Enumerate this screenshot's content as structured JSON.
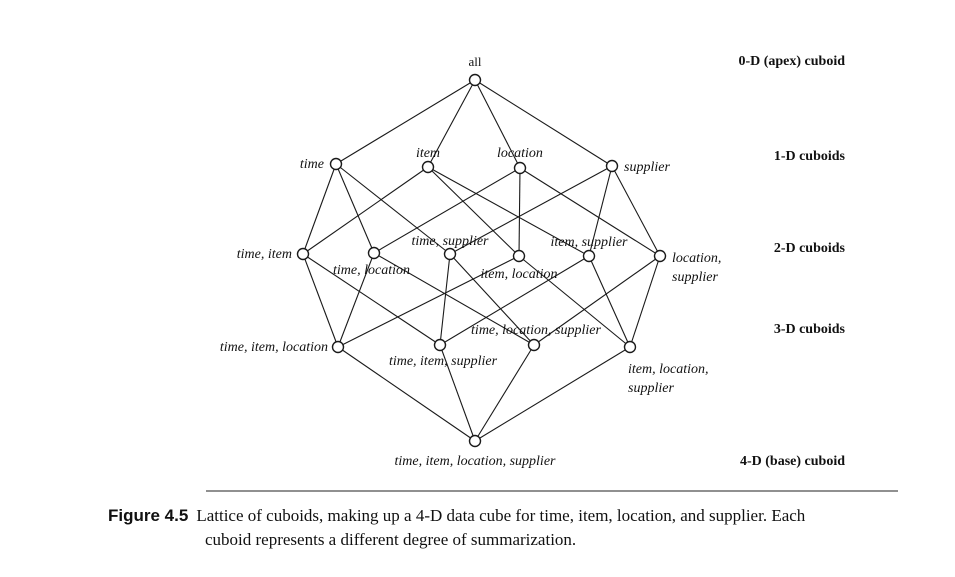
{
  "diagram": {
    "nodes": [
      {
        "id": "n0",
        "text": "all"
      },
      {
        "id": "n1",
        "text": "time"
      },
      {
        "id": "n2",
        "text": "item"
      },
      {
        "id": "n3",
        "text": "location"
      },
      {
        "id": "n4",
        "text": "supplier"
      },
      {
        "id": "n5",
        "text": "time, item"
      },
      {
        "id": "n6",
        "text": "time, location"
      },
      {
        "id": "n7",
        "text": "time, supplier"
      },
      {
        "id": "n8",
        "text": "item, location"
      },
      {
        "id": "n9",
        "text": "item, supplier"
      },
      {
        "id": "n10",
        "text": "location, supplier"
      },
      {
        "id": "n11",
        "text": "time, item, location"
      },
      {
        "id": "n12",
        "text": "time, item, supplier"
      },
      {
        "id": "n13",
        "text": "time, location, supplier"
      },
      {
        "id": "n14",
        "text": "item, location, supplier"
      },
      {
        "id": "n15",
        "text": "time, item, location, supplier"
      }
    ],
    "edges": [
      [
        "n0",
        "n1"
      ],
      [
        "n0",
        "n2"
      ],
      [
        "n0",
        "n3"
      ],
      [
        "n0",
        "n4"
      ],
      [
        "n1",
        "n5"
      ],
      [
        "n1",
        "n6"
      ],
      [
        "n1",
        "n7"
      ],
      [
        "n2",
        "n5"
      ],
      [
        "n2",
        "n8"
      ],
      [
        "n2",
        "n9"
      ],
      [
        "n3",
        "n6"
      ],
      [
        "n3",
        "n8"
      ],
      [
        "n3",
        "n10"
      ],
      [
        "n4",
        "n7"
      ],
      [
        "n4",
        "n9"
      ],
      [
        "n4",
        "n10"
      ],
      [
        "n5",
        "n11"
      ],
      [
        "n5",
        "n12"
      ],
      [
        "n6",
        "n11"
      ],
      [
        "n6",
        "n13"
      ],
      [
        "n7",
        "n12"
      ],
      [
        "n7",
        "n13"
      ],
      [
        "n8",
        "n11"
      ],
      [
        "n8",
        "n14"
      ],
      [
        "n9",
        "n12"
      ],
      [
        "n9",
        "n14"
      ],
      [
        "n10",
        "n13"
      ],
      [
        "n10",
        "n14"
      ],
      [
        "n11",
        "n15"
      ],
      [
        "n12",
        "n15"
      ],
      [
        "n13",
        "n15"
      ],
      [
        "n14",
        "n15"
      ]
    ],
    "levels": [
      "0-D (apex) cuboid",
      "1-D cuboids",
      "2-D cuboids",
      "3-D cuboids",
      "4-D (base) cuboid"
    ]
  },
  "caption": {
    "label": "Figure 4.5",
    "line1": "Lattice of cuboids, making up a 4-D data cube for time, item, location, and supplier. Each",
    "line2": "cuboid represents a different degree of summarization."
  }
}
